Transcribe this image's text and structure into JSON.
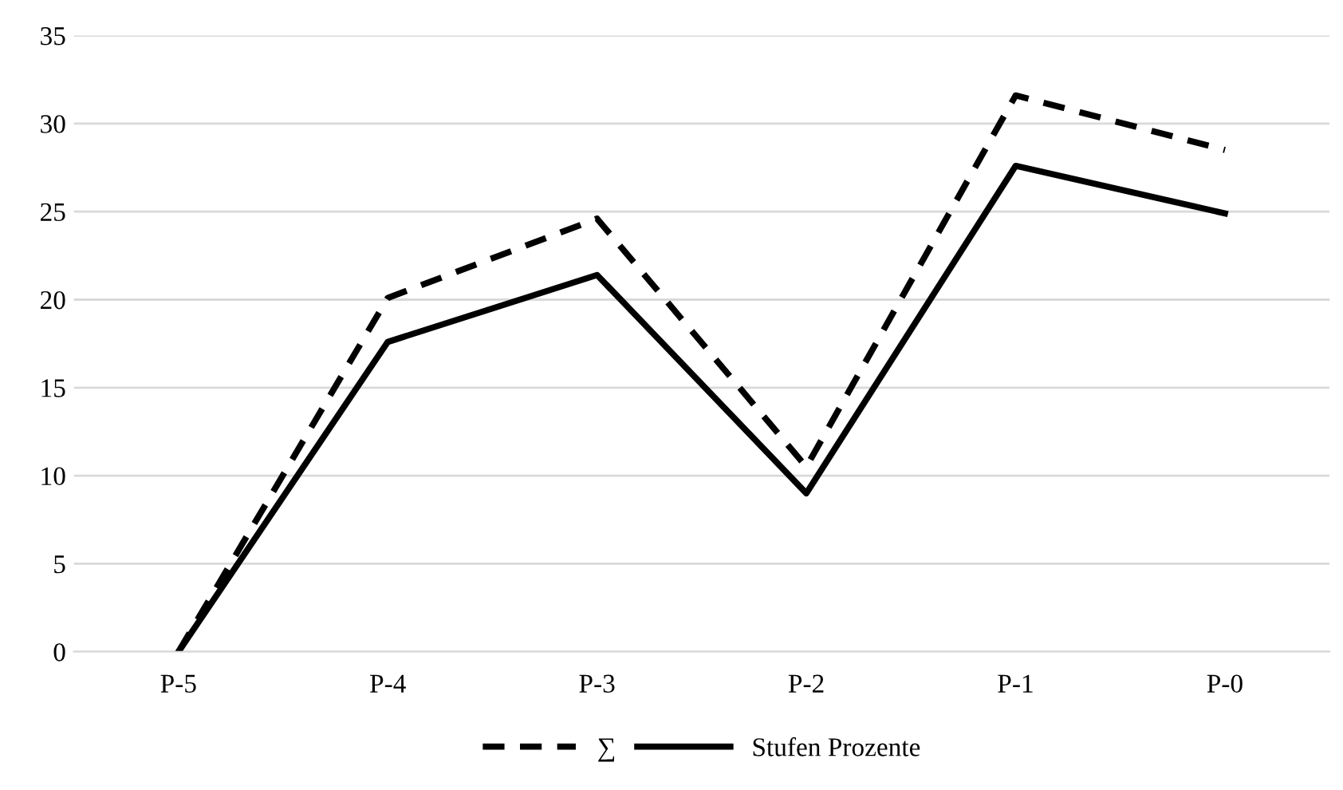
{
  "chart_data": {
    "type": "line",
    "categories": [
      "P-5",
      "P-4",
      "P-3",
      "P-2",
      "P-1",
      "P-0"
    ],
    "series": [
      {
        "name": "∑",
        "color": "#000000",
        "line_style": "dashed",
        "values": [
          0,
          20.1,
          24.6,
          10.5,
          31.6,
          28.5
        ]
      },
      {
        "name": "Stufen Prozente",
        "color": "#000000",
        "line_style": "solid",
        "values": [
          0,
          17.6,
          21.4,
          9.0,
          27.6,
          24.9
        ]
      }
    ],
    "ylim": [
      0,
      35
    ],
    "yticks": [
      0,
      5,
      10,
      15,
      20,
      25,
      30,
      35
    ],
    "grid": "y",
    "legend": "bottom",
    "marker": "none"
  }
}
